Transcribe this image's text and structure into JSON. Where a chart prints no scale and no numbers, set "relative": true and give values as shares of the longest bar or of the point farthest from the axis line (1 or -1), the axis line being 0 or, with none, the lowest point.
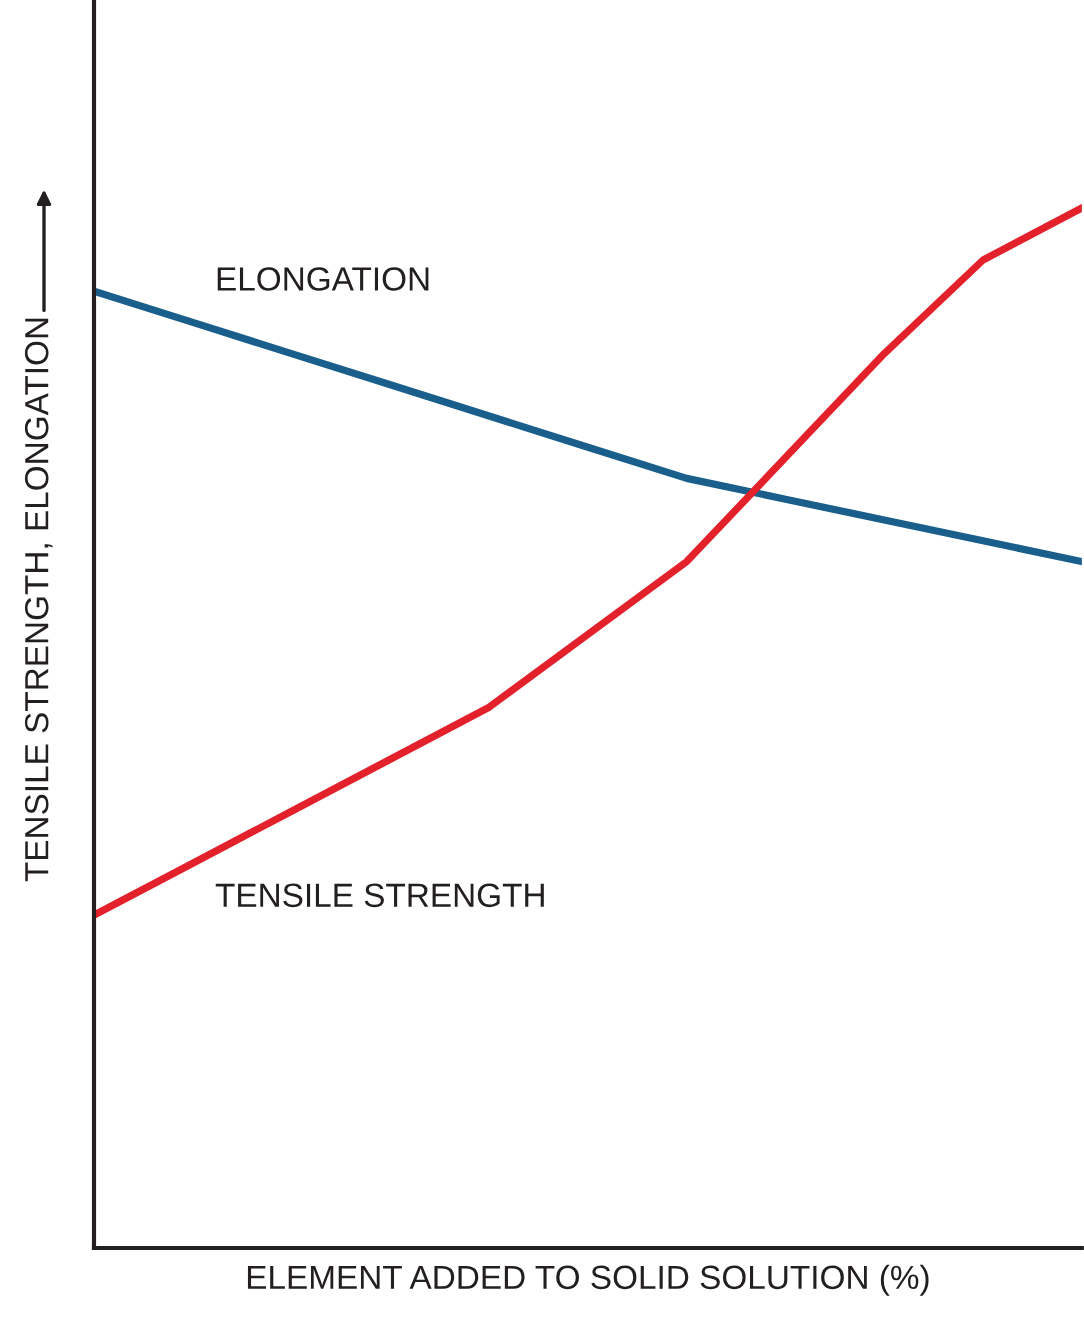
{
  "chart_data": {
    "type": "line",
    "relative": true,
    "xlabel": "ELEMENT ADDED TO SOLID SOLUTION (%)",
    "ylabel": "TENSILE STRENGTH, ELONGATION",
    "categories": [
      null,
      null,
      null,
      null,
      null,
      null,
      null,
      null,
      null,
      null,
      null
    ],
    "series": [
      {
        "name": "ELONGATION",
        "color": "#1a5e8c",
        "values": [
          0.92,
          0.89,
          0.86,
          0.83,
          0.8,
          0.77,
          0.74,
          0.72,
          0.7,
          0.68,
          0.66
        ]
      },
      {
        "name": "TENSILE STRENGTH",
        "color": "#e3212b",
        "values": [
          0.32,
          0.37,
          0.42,
          0.47,
          0.52,
          0.59,
          0.66,
          0.76,
          0.86,
          0.95,
          1.0
        ]
      }
    ],
    "grid": false,
    "legend": false,
    "marker": "none",
    "line_style": "solid",
    "tick_labels": false
  }
}
